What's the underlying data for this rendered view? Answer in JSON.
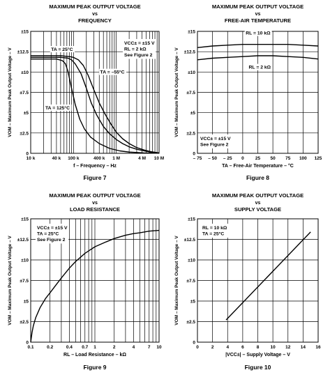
{
  "chart_data": [
    {
      "id": "fig7",
      "type": "line",
      "title_lines": [
        "MAXIMUM PEAK OUTPUT VOLTAGE",
        "vs",
        "FREQUENCY"
      ],
      "figure_label": "Figure 7",
      "xlabel": "f – Frequency – Hz",
      "ylabel": "VOM – Maximum Peak Output Voltage – V",
      "x_scale": "log",
      "xlim": [
        10000,
        10000000
      ],
      "ylim": [
        0,
        15
      ],
      "x_ticks": [
        {
          "v": 10000,
          "label": "10 k"
        },
        {
          "v": 40000,
          "label": "40 k"
        },
        {
          "v": 100000,
          "label": "100 k"
        },
        {
          "v": 400000,
          "label": "400 k"
        },
        {
          "v": 1000000,
          "label": "1 M"
        },
        {
          "v": 4000000,
          "label": "4 M"
        },
        {
          "v": 10000000,
          "label": "10 M"
        }
      ],
      "x_grid": [
        10000,
        20000,
        30000,
        40000,
        50000,
        60000,
        70000,
        80000,
        90000,
        100000,
        200000,
        300000,
        400000,
        500000,
        600000,
        700000,
        800000,
        900000,
        1000000,
        2000000,
        3000000,
        4000000,
        5000000,
        6000000,
        7000000,
        8000000,
        9000000,
        10000000
      ],
      "y_ticks": [
        {
          "v": 0,
          "label": "0"
        },
        {
          "v": 2.5,
          "label": "±2.5"
        },
        {
          "v": 5,
          "label": "±5"
        },
        {
          "v": 7.5,
          "label": "±7.5"
        },
        {
          "v": 10,
          "label": "±10"
        },
        {
          "v": 12.5,
          "label": "±12.5"
        },
        {
          "v": 15,
          "label": "±15"
        }
      ],
      "legend": [
        "VCC± = ±15 V",
        "RL = 2 kΩ",
        "See Figure 2"
      ],
      "annotations": [
        {
          "text": "TA = 25°C",
          "x": 30000,
          "y": 12.6
        },
        {
          "text": "TA = –55°C",
          "x": 420000,
          "y": 9.8
        },
        {
          "text": "TA = 125°C",
          "x": 22000,
          "y": 5.4
        }
      ],
      "series": [
        {
          "x": [
            10000,
            50000,
            75000,
            90000,
            110000,
            150000,
            200000,
            260000,
            350000,
            500000,
            700000,
            1000000,
            1400000,
            2000000,
            3000000,
            4500000,
            6500000,
            10000000
          ],
          "y": [
            11.8,
            11.8,
            11.7,
            11.5,
            11.0,
            9.8,
            8.0,
            6.2,
            4.7,
            3.3,
            2.4,
            1.7,
            1.2,
            0.8,
            0.5,
            0.3,
            0.15,
            0.05
          ]
        },
        {
          "x": [
            10000,
            50000,
            80000,
            100000,
            130000,
            170000,
            220000,
            300000,
            400000,
            550000,
            750000,
            1000000,
            1400000,
            2000000,
            3000000,
            4500000,
            6500000,
            10000000
          ],
          "y": [
            12.0,
            12.0,
            11.9,
            11.8,
            11.5,
            10.8,
            9.6,
            7.8,
            6.2,
            4.8,
            3.6,
            2.6,
            1.8,
            1.2,
            0.7,
            0.4,
            0.2,
            0.05
          ]
        },
        {
          "x": [
            10000,
            40000,
            55000,
            65000,
            75000,
            90000,
            110000,
            140000,
            180000,
            250000,
            400000,
            700000,
            1200000,
            2000000,
            3000000,
            4500000,
            10000000
          ],
          "y": [
            11.6,
            11.6,
            11.4,
            11.0,
            10.0,
            8.0,
            6.0,
            4.2,
            3.0,
            2.0,
            1.2,
            0.6,
            0.3,
            0.15,
            0.1,
            0.05,
            0.02
          ]
        }
      ]
    },
    {
      "id": "fig8",
      "type": "line",
      "title_lines": [
        "MAXIMUM PEAK OUTPUT VOLTAGE",
        "vs",
        "FREE-AIR TEMPERATURE"
      ],
      "figure_label": "Figure 8",
      "xlabel": "TA – Free-Air Temperature – °C",
      "ylabel": "VOM – Maximum Peak Output Voltage – V",
      "x_scale": "linear",
      "xlim": [
        -75,
        125
      ],
      "ylim": [
        0,
        15
      ],
      "x_ticks": [
        {
          "v": -75,
          "label": "– 75"
        },
        {
          "v": -50,
          "label": "– 50"
        },
        {
          "v": -25,
          "label": "– 25"
        },
        {
          "v": 0,
          "label": "0"
        },
        {
          "v": 25,
          "label": "25"
        },
        {
          "v": 50,
          "label": "50"
        },
        {
          "v": 75,
          "label": "75"
        },
        {
          "v": 100,
          "label": "100"
        },
        {
          "v": 125,
          "label": "125"
        }
      ],
      "x_grid": [
        -75,
        -50,
        -25,
        0,
        25,
        50,
        75,
        100,
        125
      ],
      "y_ticks": [
        {
          "v": 0,
          "label": "0"
        },
        {
          "v": 2.5,
          "label": "±2.5"
        },
        {
          "v": 5,
          "label": "±5"
        },
        {
          "v": 7.5,
          "label": "±7.5"
        },
        {
          "v": 10,
          "label": "±10"
        },
        {
          "v": 12.5,
          "label": "±12.5"
        },
        {
          "v": 15,
          "label": "±15"
        }
      ],
      "legend": [
        "VCC± = ±15 V",
        "See Figure 2"
      ],
      "legend_pos": "bottom-left",
      "annotations": [
        {
          "text": "RL = 10 kΩ",
          "x": 5,
          "y": 14.6
        },
        {
          "text": "RL = 2 kΩ",
          "x": 10,
          "y": 10.4
        }
      ],
      "series": [
        {
          "x": [
            -75,
            -50,
            -25,
            0,
            25,
            50,
            75,
            100,
            125
          ],
          "y": [
            13.0,
            13.2,
            13.3,
            13.4,
            13.4,
            13.4,
            13.4,
            13.3,
            13.2
          ]
        },
        {
          "x": [
            -75,
            -50,
            -25,
            0,
            25,
            50,
            75,
            100,
            125
          ],
          "y": [
            11.5,
            11.7,
            11.8,
            11.9,
            12.0,
            12.0,
            11.9,
            11.8,
            11.6
          ]
        }
      ]
    },
    {
      "id": "fig9",
      "type": "line",
      "title_lines": [
        "MAXIMUM PEAK OUTPUT VOLTAGE",
        "vs",
        "LOAD RESISTANCE"
      ],
      "figure_label": "Figure 9",
      "xlabel": "RL – Load Resistance – kΩ",
      "ylabel": "VOM – Maximum Peak Output Voltage – V",
      "x_scale": "log",
      "xlim": [
        0.1,
        10
      ],
      "ylim": [
        0,
        15
      ],
      "x_ticks": [
        {
          "v": 0.1,
          "label": "0.1"
        },
        {
          "v": 0.2,
          "label": "0.2"
        },
        {
          "v": 0.4,
          "label": "0.4"
        },
        {
          "v": 0.7,
          "label": "0.7"
        },
        {
          "v": 1,
          "label": "1"
        },
        {
          "v": 2,
          "label": "2"
        },
        {
          "v": 4,
          "label": "4"
        },
        {
          "v": 7,
          "label": "7"
        },
        {
          "v": 10,
          "label": "10"
        }
      ],
      "x_grid": [
        0.1,
        0.2,
        0.3,
        0.4,
        0.5,
        0.6,
        0.7,
        0.8,
        0.9,
        1,
        2,
        3,
        4,
        5,
        6,
        7,
        8,
        9,
        10
      ],
      "y_ticks": [
        {
          "v": 0,
          "label": "0"
        },
        {
          "v": 2.5,
          "label": "±2.5"
        },
        {
          "v": 5,
          "label": "±5"
        },
        {
          "v": 7.5,
          "label": "±7.5"
        },
        {
          "v": 10,
          "label": "±10"
        },
        {
          "v": 12.5,
          "label": "±12.5"
        },
        {
          "v": 15,
          "label": "±15"
        }
      ],
      "legend": [
        "VCC± = ±15 V",
        "TA = 25°C",
        "See Figure 2"
      ],
      "series": [
        {
          "x": [
            0.1,
            0.105,
            0.11,
            0.12,
            0.14,
            0.17,
            0.2,
            0.25,
            0.3,
            0.4,
            0.5,
            0.7,
            1,
            1.5,
            2,
            3,
            4,
            5,
            7,
            10
          ],
          "y": [
            0,
            1.2,
            2.0,
            3.0,
            4.2,
            5.3,
            6.0,
            7.0,
            7.8,
            9.0,
            9.8,
            10.8,
            11.6,
            12.2,
            12.6,
            13.0,
            13.2,
            13.3,
            13.5,
            13.6
          ]
        }
      ]
    },
    {
      "id": "fig10",
      "type": "line",
      "title_lines": [
        "MAXIMUM PEAK OUTPUT VOLTAGE",
        "vs",
        "SUPPLY VOLTAGE"
      ],
      "figure_label": "Figure 10",
      "xlabel": "|VCC±| – Supply Voltage – V",
      "ylabel": "VOM – Maximum Peak Output Voltage – V",
      "x_scale": "linear",
      "xlim": [
        0,
        16
      ],
      "ylim": [
        0,
        15
      ],
      "x_ticks": [
        {
          "v": 0,
          "label": "0"
        },
        {
          "v": 2,
          "label": "2"
        },
        {
          "v": 4,
          "label": "4"
        },
        {
          "v": 6,
          "label": "6"
        },
        {
          "v": 8,
          "label": "8"
        },
        {
          "v": 10,
          "label": "10"
        },
        {
          "v": 12,
          "label": "12"
        },
        {
          "v": 14,
          "label": "14"
        },
        {
          "v": 16,
          "label": "16"
        }
      ],
      "x_grid": [
        0,
        2,
        4,
        6,
        8,
        10,
        12,
        14,
        16
      ],
      "y_ticks": [
        {
          "v": 0,
          "label": "0"
        },
        {
          "v": 2.5,
          "label": "±2.5"
        },
        {
          "v": 5,
          "label": "±5"
        },
        {
          "v": 7.5,
          "label": "±7.5"
        },
        {
          "v": 10,
          "label": "±10"
        },
        {
          "v": 12.5,
          "label": "±12.5"
        },
        {
          "v": 15,
          "label": "±15"
        }
      ],
      "legend": [
        "RL = 10 kΩ",
        "TA = 25°C"
      ],
      "series": [
        {
          "x": [
            3.8,
            15
          ],
          "y": [
            2.7,
            13.4
          ]
        }
      ]
    }
  ]
}
